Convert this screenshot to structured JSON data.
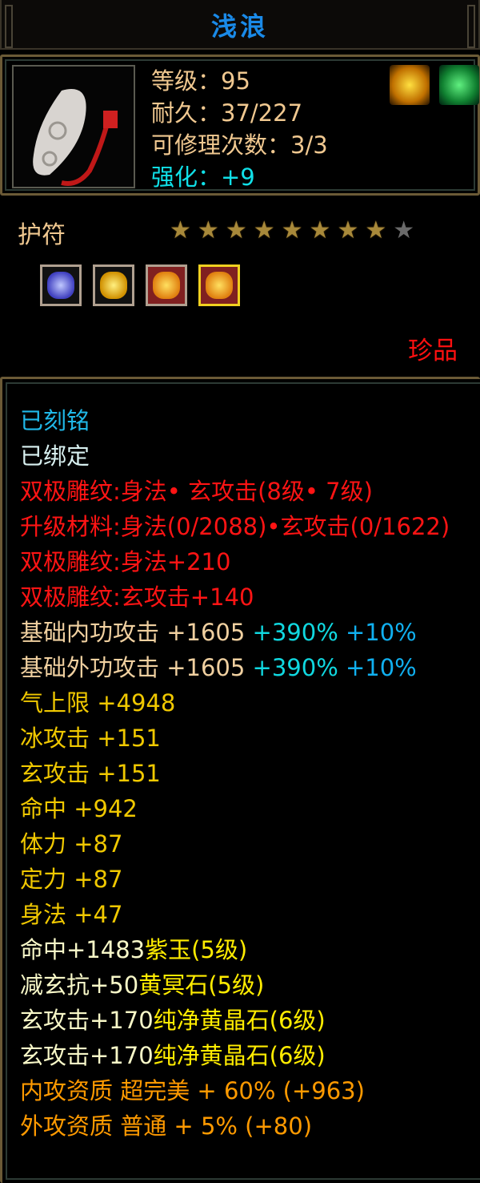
{
  "item": {
    "name": "浅浪",
    "level": "等级：95",
    "durability": "耐久：37/227",
    "repairs": "可修理次数：3/3",
    "enhance": "强化：+9",
    "type": "护符",
    "rarity": "珍品",
    "stars_total": 9,
    "stars_filled": 8
  },
  "buffs": [
    {
      "icon": "gold-flame-buff-icon",
      "color": "#e8b000"
    },
    {
      "icon": "green-flame-buff-icon",
      "color": "#20c040"
    }
  ],
  "gems": [
    {
      "icon": "purple-jade-gem-icon",
      "color": "#5050d0"
    },
    {
      "icon": "yellow-stone-gem-icon",
      "color": "#e0b000"
    },
    {
      "icon": "yellow-crystal-gem-icon",
      "color": "#d04020"
    },
    {
      "icon": "yellow-crystal-gem-icon",
      "color": "#d04020",
      "selected": true
    }
  ],
  "lines": {
    "engraved": "已刻铭",
    "bound": "已绑定",
    "carve1": "双极雕纹:身法• 玄攻击(8级• 7级)",
    "material": "升级材料:身法(0/2088)•玄攻击(0/1622)",
    "carve2": "双极雕纹:身法+210",
    "carve3": "双极雕纹:玄攻击+140",
    "inner_atk": {
      "base": "基础内功攻击 +1605",
      "pct": "+390%",
      "bonus": "+10%"
    },
    "outer_atk": {
      "base": "基础外功攻击 +1605",
      "pct": "+390%",
      "bonus": "+10%"
    },
    "stats": [
      "气上限 +4948",
      "冰攻击 +151",
      "玄攻击 +151",
      "命中 +942",
      "体力 +87",
      "定力 +87",
      "身法 +47"
    ],
    "gem_stats": [
      {
        "stat": "命中+1483",
        "gem": "紫玉(5级)"
      },
      {
        "stat": "减玄抗+50",
        "gem": "黄冥石(5级)"
      },
      {
        "stat": "玄攻击+170",
        "gem": "纯净黄晶石(6级)"
      },
      {
        "stat": "玄攻击+170",
        "gem": "纯净黄晶石(6级)"
      }
    ],
    "quality": [
      "内攻资质 超完美 + 60% (+963)",
      "外攻资质 普通 + 5% (+80)"
    ]
  }
}
